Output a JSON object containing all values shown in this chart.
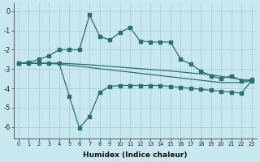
{
  "xlabel": "Humidex (Indice chaleur)",
  "bg_color": "#c8e8f0",
  "grid_color": "#a8ccd8",
  "line_color": "#2a7070",
  "xlim": [
    -0.5,
    23.5
  ],
  "ylim": [
    -6.6,
    0.4
  ],
  "yticks": [
    0,
    -1,
    -2,
    -3,
    -4,
    -5,
    -6
  ],
  "xticks": [
    0,
    1,
    2,
    3,
    4,
    5,
    6,
    7,
    8,
    9,
    10,
    11,
    12,
    13,
    14,
    15,
    16,
    17,
    18,
    19,
    20,
    21,
    22,
    23
  ],
  "curve_upper_x": [
    0,
    1,
    2,
    3,
    4,
    5,
    6,
    7,
    8,
    9,
    10,
    11,
    12,
    13,
    14,
    15,
    16,
    17,
    18,
    19,
    20,
    21,
    22,
    23
  ],
  "curve_upper_y": [
    -2.7,
    -2.65,
    -2.5,
    -2.3,
    -2.0,
    -2.0,
    -2.0,
    -0.2,
    -1.3,
    -1.5,
    -1.1,
    -0.85,
    -1.55,
    -1.6,
    -1.6,
    -1.6,
    -2.5,
    -2.75,
    -3.1,
    -3.35,
    -3.5,
    -3.35,
    -3.6,
    -3.55
  ],
  "curve_lower_x": [
    0,
    1,
    2,
    3,
    4,
    5,
    6,
    7,
    8,
    9,
    10,
    11,
    12,
    13,
    14,
    15,
    16,
    17,
    18,
    19,
    20,
    21,
    22,
    23
  ],
  "curve_lower_y": [
    -2.7,
    -2.7,
    -2.7,
    -2.7,
    -2.7,
    -4.4,
    -6.05,
    -5.45,
    -4.2,
    -3.9,
    -3.85,
    -3.85,
    -3.85,
    -3.85,
    -3.85,
    -3.9,
    -3.95,
    -4.0,
    -4.05,
    -4.1,
    -4.15,
    -4.2,
    -4.25,
    -3.6
  ],
  "curve_diag1_x": [
    0,
    1,
    2,
    3,
    4,
    5,
    6,
    7,
    8,
    9,
    10,
    11,
    12,
    13,
    14,
    15,
    16,
    17,
    18,
    19,
    20,
    21,
    22,
    23
  ],
  "curve_diag1_y": [
    -2.7,
    -2.7,
    -2.7,
    -2.7,
    -2.7,
    -2.72,
    -2.75,
    -2.78,
    -2.82,
    -2.86,
    -2.9,
    -2.94,
    -2.98,
    -3.02,
    -3.06,
    -3.1,
    -3.15,
    -3.2,
    -3.25,
    -3.3,
    -3.38,
    -3.46,
    -3.54,
    -3.6
  ],
  "curve_diag2_x": [
    0,
    1,
    2,
    3,
    4,
    5,
    6,
    7,
    8,
    9,
    10,
    11,
    12,
    13,
    14,
    15,
    16,
    17,
    18,
    19,
    20,
    21,
    22,
    23
  ],
  "curve_diag2_y": [
    -2.7,
    -2.7,
    -2.7,
    -2.72,
    -2.74,
    -2.8,
    -2.86,
    -2.92,
    -2.98,
    -3.04,
    -3.1,
    -3.16,
    -3.22,
    -3.28,
    -3.34,
    -3.4,
    -3.46,
    -3.52,
    -3.58,
    -3.64,
    -3.7,
    -3.7,
    -3.7,
    -3.6
  ]
}
